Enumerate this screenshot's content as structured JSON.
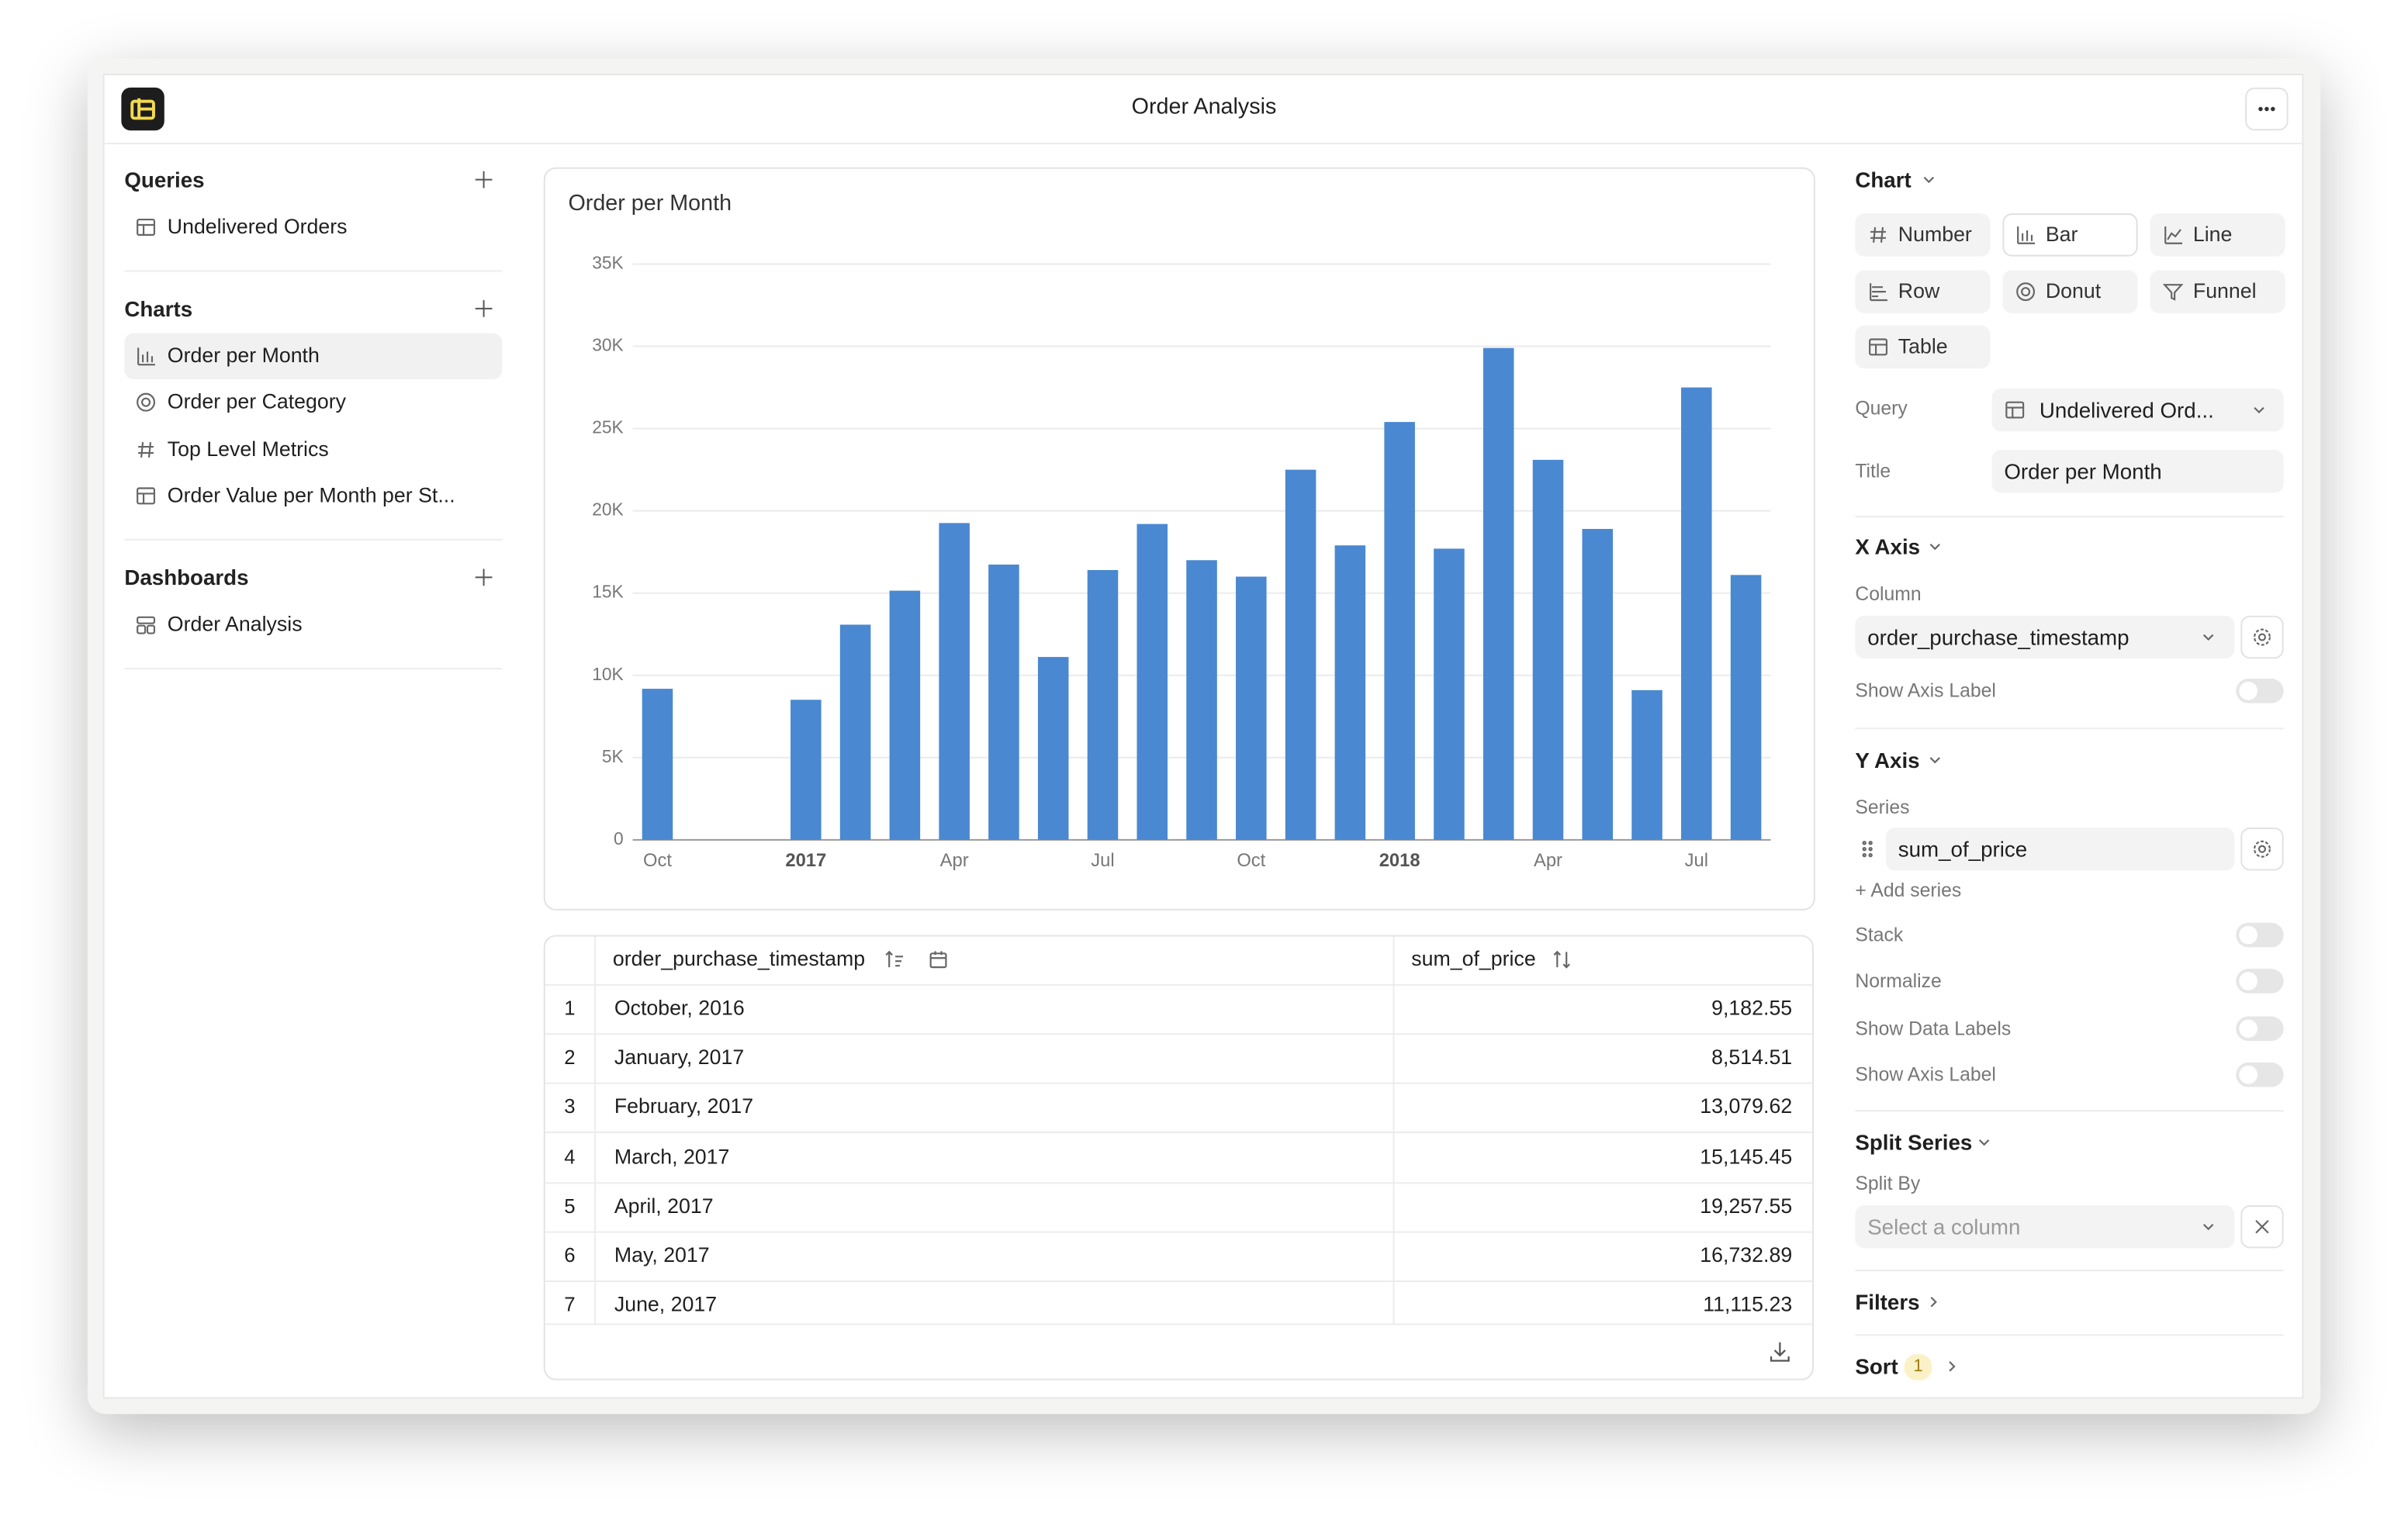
{
  "window_title": "Order Analysis",
  "sidebar": {
    "sections": [
      {
        "title": "Queries",
        "items": [
          "Undelivered Orders"
        ]
      },
      {
        "title": "Charts",
        "items": [
          "Order per Month",
          "Order per Category",
          "Top Level Metrics",
          "Order Value per Month per St..."
        ]
      },
      {
        "title": "Dashboards",
        "items": [
          "Order Analysis"
        ]
      }
    ]
  },
  "chart_data": {
    "type": "bar",
    "title": "Order per Month",
    "categories": [
      "Oct",
      null,
      null,
      "2017",
      null,
      null,
      "Apr",
      null,
      null,
      "Jul",
      null,
      null,
      "Oct",
      null,
      null,
      "2018",
      null,
      null,
      "Apr",
      null,
      null,
      "Jul",
      null
    ],
    "values": [
      9182.55,
      null,
      null,
      8514.51,
      13079.62,
      15145.45,
      19257.55,
      16732.89,
      11115.23,
      16400,
      19200,
      17000,
      16000,
      22500,
      17900,
      25400,
      17700,
      29900,
      23100,
      18900,
      9100,
      27500,
      16100
    ],
    "color": "#4a88d1",
    "ylim": [
      0,
      35000
    ],
    "yticks": [
      0,
      {
        "value": 5000,
        "label": "5K"
      },
      {
        "value": 10000,
        "label": "10K"
      },
      {
        "value": 15000,
        "label": "15K"
      },
      {
        "value": 20000,
        "label": "20K"
      },
      {
        "value": 25000,
        "label": "25K"
      },
      {
        "value": 30000,
        "label": "30K"
      },
      {
        "value": 35000,
        "label": "35K"
      }
    ],
    "grid": true
  },
  "table": {
    "columns": [
      "order_purchase_timestamp",
      "sum_of_price"
    ],
    "rows": [
      [
        "1",
        "October, 2016",
        "9,182.55"
      ],
      [
        "2",
        "January, 2017",
        "8,514.51"
      ],
      [
        "3",
        "February, 2017",
        "13,079.62"
      ],
      [
        "4",
        "March, 2017",
        "15,145.45"
      ],
      [
        "5",
        "April, 2017",
        "19,257.55"
      ],
      [
        "6",
        "May, 2017",
        "16,732.89"
      ],
      [
        "7",
        "June, 2017",
        "11,115.23"
      ]
    ]
  },
  "panel": {
    "chart_heading": "Chart",
    "chart_types": [
      "Number",
      "Bar",
      "Line",
      "Row",
      "Donut",
      "Funnel",
      "Table"
    ],
    "query_label": "Query",
    "query_value": "Undelivered Ord...",
    "title_label": "Title",
    "title_value": "Order per Month",
    "x_axis": {
      "heading": "X Axis",
      "column_label": "Column",
      "column_value": "order_purchase_timestamp",
      "toggles": [
        "Show Axis Label"
      ]
    },
    "y_axis": {
      "heading": "Y Axis",
      "series_label": "Series",
      "series_value": "sum_of_price",
      "add_series": "+ Add series",
      "toggles": [
        "Stack",
        "Normalize",
        "Show Data Labels",
        "Show Axis Label"
      ]
    },
    "split": {
      "heading": "Split Series",
      "label": "Split By",
      "placeholder": "Select a column"
    },
    "filters": "Filters",
    "sort": "Sort",
    "sort_count": "1"
  }
}
